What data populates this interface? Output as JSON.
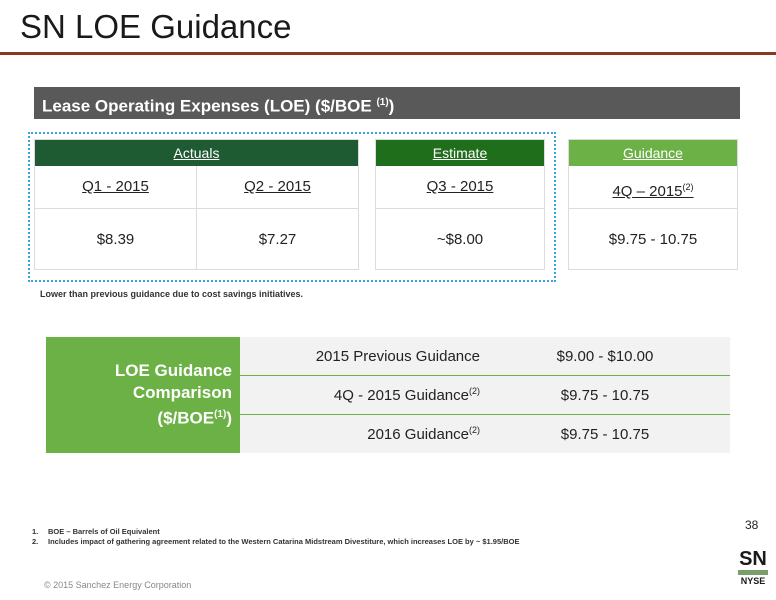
{
  "header": {
    "title": "SN LOE Guidance"
  },
  "section": {
    "title": "Lease Operating Expenses (LOE) ($/BOE ",
    "title_sup": "(1)",
    "title_end": ")"
  },
  "colors": {
    "actuals": "#1e5a32",
    "estimate": "#1f6e1c",
    "guidance": "#6bb145",
    "rule": "#8b3a1f"
  },
  "actuals": {
    "label": "Actuals",
    "columns": [
      {
        "period": "Q1 - 2015",
        "value": "$8.39"
      },
      {
        "period": "Q2 - 2015",
        "value": "$7.27"
      }
    ]
  },
  "estimate": {
    "label": "Estimate",
    "period": "Q3 - 2015",
    "value": "~$8.00"
  },
  "guidance": {
    "label": "Guidance",
    "period": "4Q – 2015",
    "period_sup": "(2)",
    "value": "$9.75 - 10.75"
  },
  "note": "Lower than previous guidance due to cost savings initiatives.",
  "comparison": {
    "label_line1": "LOE Guidance",
    "label_line2": "Comparison",
    "label_line3": "($/BOE",
    "label_sup": "(1)",
    "label_end": ")",
    "rows": [
      {
        "name": "2015 Previous Guidance",
        "sup": "",
        "value": "$9.00 - $10.00"
      },
      {
        "name": "4Q - 2015 Guidance",
        "sup": "(2)",
        "value": "$9.75 - 10.75"
      },
      {
        "name": "2016 Guidance",
        "sup": "(2)",
        "value": "$9.75 - 10.75"
      }
    ]
  },
  "footnotes": [
    {
      "num": "1.",
      "text": "BOE – Barrels of Oil Equivalent"
    },
    {
      "num": "2.",
      "text": "Includes impact of gathering agreement related to the Western Catarina Midstream Divestiture, which increases LOE by ~ $1.95/BOE"
    }
  ],
  "page_number": "38",
  "copyright": "© 2015 Sanchez Energy Corporation",
  "logo": {
    "top": "SN",
    "bottom": "NYSE"
  }
}
